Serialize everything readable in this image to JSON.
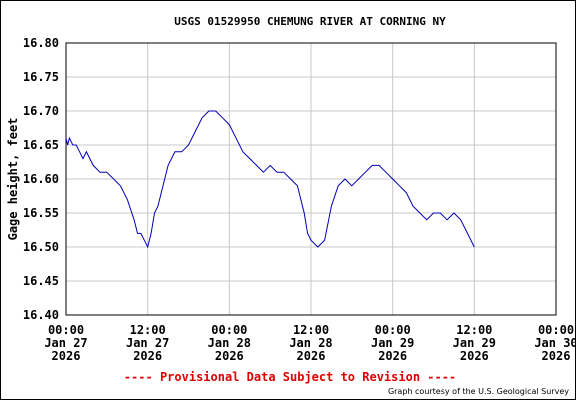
{
  "chart_data": {
    "type": "line",
    "title": "USGS 01529950 CHEMUNG RIVER AT CORNING NY",
    "ylabel": "Gage height, feet",
    "xlabel": "",
    "ylim": [
      16.4,
      16.8
    ],
    "yticks": [
      "16.80",
      "16.75",
      "16.70",
      "16.65",
      "16.60",
      "16.55",
      "16.50",
      "16.45",
      "16.40"
    ],
    "xlim_hours": [
      0,
      72
    ],
    "xticks": [
      {
        "time": "00:00",
        "date": "Jan 27",
        "year": "2026"
      },
      {
        "time": "12:00",
        "date": "Jan 27",
        "year": "2026"
      },
      {
        "time": "00:00",
        "date": "Jan 28",
        "year": "2026"
      },
      {
        "time": "12:00",
        "date": "Jan 28",
        "year": "2026"
      },
      {
        "time": "00:00",
        "date": "Jan 29",
        "year": "2026"
      },
      {
        "time": "12:00",
        "date": "Jan 29",
        "year": "2026"
      },
      {
        "time": "00:00",
        "date": "Jan 30",
        "year": "2026"
      }
    ],
    "grid": true,
    "series": [
      {
        "color": "#0000b4",
        "x": [
          "2026-01-27 00:00",
          "2026-01-27 00:15",
          "2026-01-27 00:30",
          "2026-01-27 01:00",
          "2026-01-27 01:30",
          "2026-01-27 02:00",
          "2026-01-27 02:30",
          "2026-01-27 03:00",
          "2026-01-27 03:30",
          "2026-01-27 04:00",
          "2026-01-27 05:00",
          "2026-01-27 06:00",
          "2026-01-27 07:00",
          "2026-01-27 08:00",
          "2026-01-27 09:00",
          "2026-01-27 10:00",
          "2026-01-27 10:30",
          "2026-01-27 11:00",
          "2026-01-27 11:30",
          "2026-01-27 12:00",
          "2026-01-27 12:30",
          "2026-01-27 13:00",
          "2026-01-27 13:30",
          "2026-01-27 14:00",
          "2026-01-27 15:00",
          "2026-01-27 16:00",
          "2026-01-27 17:00",
          "2026-01-27 18:00",
          "2026-01-27 19:00",
          "2026-01-27 20:00",
          "2026-01-27 21:00",
          "2026-01-27 22:00",
          "2026-01-27 23:00",
          "2026-01-28 00:00",
          "2026-01-28 01:00",
          "2026-01-28 02:00",
          "2026-01-28 03:00",
          "2026-01-28 04:00",
          "2026-01-28 05:00",
          "2026-01-28 06:00",
          "2026-01-28 07:00",
          "2026-01-28 08:00",
          "2026-01-28 09:00",
          "2026-01-28 10:00",
          "2026-01-28 11:00",
          "2026-01-28 11:30",
          "2026-01-28 12:00",
          "2026-01-28 13:00",
          "2026-01-28 14:00",
          "2026-01-28 15:00",
          "2026-01-28 16:00",
          "2026-01-28 17:00",
          "2026-01-28 18:00",
          "2026-01-28 19:00",
          "2026-01-28 20:00",
          "2026-01-28 21:00",
          "2026-01-28 22:00",
          "2026-01-28 23:00",
          "2026-01-29 00:00",
          "2026-01-29 01:00",
          "2026-01-29 02:00",
          "2026-01-29 03:00",
          "2026-01-29 04:00",
          "2026-01-29 05:00",
          "2026-01-29 06:00",
          "2026-01-29 07:00",
          "2026-01-29 08:00",
          "2026-01-29 09:00",
          "2026-01-29 10:00",
          "2026-01-29 11:00",
          "2026-01-29 12:00"
        ],
        "values": [
          16.66,
          16.65,
          16.66,
          16.65,
          16.65,
          16.64,
          16.63,
          16.64,
          16.63,
          16.62,
          16.61,
          16.61,
          16.6,
          16.59,
          16.57,
          16.54,
          16.52,
          16.52,
          16.51,
          16.5,
          16.52,
          16.55,
          16.56,
          16.58,
          16.62,
          16.64,
          16.64,
          16.65,
          16.67,
          16.69,
          16.7,
          16.7,
          16.69,
          16.68,
          16.66,
          16.64,
          16.63,
          16.62,
          16.61,
          16.62,
          16.61,
          16.61,
          16.6,
          16.59,
          16.55,
          16.52,
          16.51,
          16.5,
          16.51,
          16.56,
          16.59,
          16.6,
          16.59,
          16.6,
          16.61,
          16.62,
          16.62,
          16.61,
          16.6,
          16.59,
          16.58,
          16.56,
          16.55,
          16.54,
          16.55,
          16.55,
          16.54,
          16.55,
          16.54,
          16.52,
          16.5
        ]
      }
    ]
  },
  "footer": {
    "provisional": "---- Provisional Data Subject to Revision ----",
    "courtesy": "Graph courtesy of the U.S. Geological Survey"
  }
}
